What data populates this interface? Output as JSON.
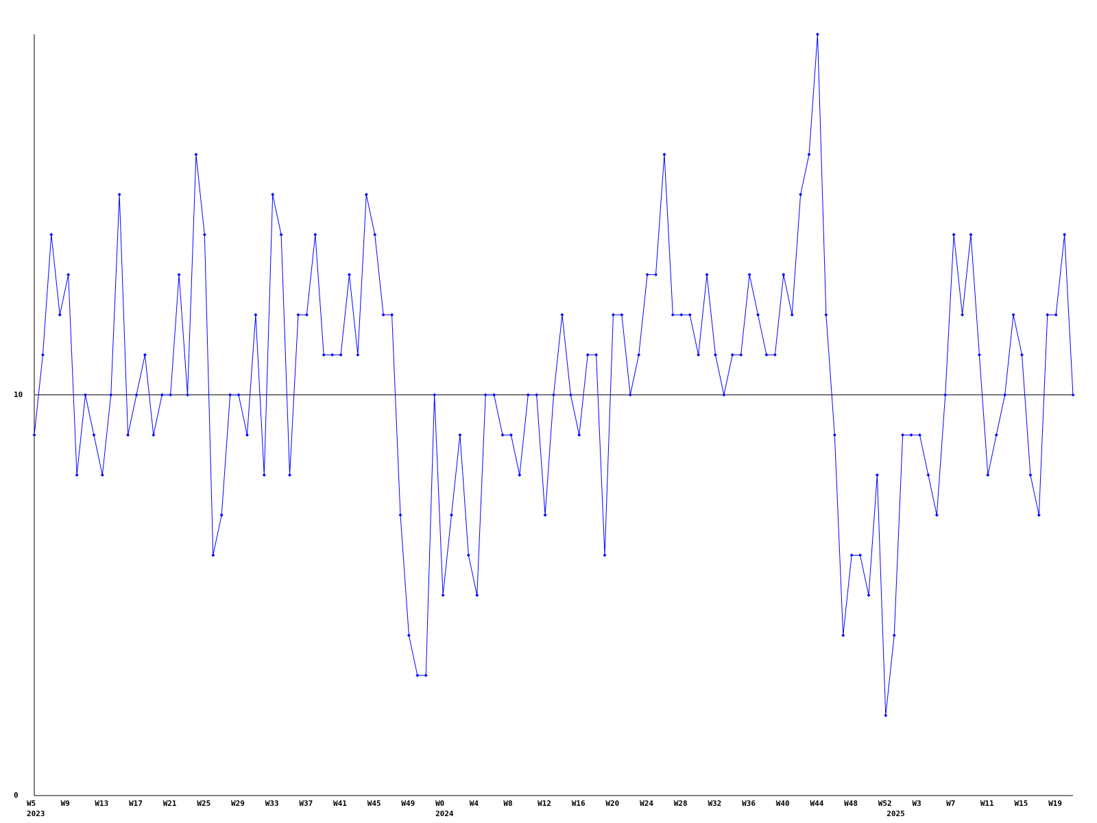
{
  "chart_data": {
    "type": "line",
    "categories": [
      "W5",
      null,
      null,
      null,
      "W9",
      null,
      null,
      null,
      "W13",
      null,
      null,
      null,
      "W17",
      null,
      null,
      null,
      "W21",
      null,
      null,
      null,
      "W25",
      null,
      null,
      null,
      "W29",
      null,
      null,
      null,
      "W33",
      null,
      null,
      null,
      "W37",
      null,
      null,
      null,
      "W41",
      null,
      null,
      null,
      "W45",
      null,
      null,
      null,
      "W49",
      null,
      null,
      null,
      "W0",
      null,
      null,
      null,
      "W4",
      null,
      null,
      null,
      "W8",
      null,
      null,
      null,
      "W12",
      null,
      null,
      null,
      "W16",
      null,
      null,
      null,
      "W20",
      null,
      null,
      null,
      "W24",
      null,
      null,
      null,
      "W28",
      null,
      null,
      null,
      "W32",
      null,
      null,
      null,
      "W36",
      null,
      null,
      null,
      "W40",
      null,
      null,
      null,
      "W44",
      null,
      null,
      null,
      "W48",
      null,
      null,
      null,
      "W52",
      null,
      null,
      null,
      "W3",
      null,
      null,
      null,
      "W7",
      null,
      null,
      null,
      "W11",
      null,
      null,
      null,
      "W15",
      null,
      null,
      null,
      "W19",
      null,
      null
    ],
    "category_years": [
      "2023",
      null,
      null,
      null,
      null,
      null,
      null,
      null,
      null,
      null,
      null,
      null,
      null,
      null,
      null,
      null,
      null,
      null,
      null,
      null,
      null,
      null,
      null,
      null,
      null,
      null,
      null,
      null,
      null,
      null,
      null,
      null,
      null,
      null,
      null,
      null,
      null,
      null,
      null,
      null,
      null,
      null,
      null,
      null,
      null,
      null,
      null,
      null,
      "2024",
      null,
      null,
      null,
      null,
      null,
      null,
      null,
      null,
      null,
      null,
      null,
      null,
      null,
      null,
      null,
      null,
      null,
      null,
      null,
      null,
      null,
      null,
      null,
      null,
      null,
      null,
      null,
      null,
      null,
      null,
      null,
      null,
      null,
      null,
      null,
      null,
      null,
      null,
      null,
      null,
      null,
      null,
      null,
      null,
      null,
      null,
      null,
      null,
      null,
      null,
      null,
      null,
      "2025",
      null,
      null,
      null,
      null,
      null,
      null,
      null,
      null,
      null,
      null,
      null,
      null,
      null,
      null,
      null,
      null,
      null,
      null,
      null,
      null,
      null
    ],
    "values": [
      9,
      11,
      14,
      12,
      13,
      8,
      10,
      9,
      8,
      10,
      15,
      9,
      10,
      11,
      9,
      10,
      10,
      13,
      10,
      16,
      14,
      6,
      7,
      10,
      10,
      9,
      12,
      8,
      15,
      14,
      8,
      12,
      12,
      14,
      11,
      11,
      11,
      13,
      11,
      15,
      14,
      12,
      12,
      7,
      4,
      3,
      3,
      10,
      5,
      7,
      9,
      6,
      5,
      10,
      10,
      9,
      9,
      8,
      10,
      10,
      7,
      10,
      12,
      10,
      9,
      11,
      11,
      6,
      12,
      12,
      10,
      11,
      13,
      13,
      16,
      12,
      12,
      12,
      11,
      13,
      11,
      10,
      11,
      11,
      13,
      12,
      11,
      11,
      13,
      12,
      15,
      16,
      19,
      12,
      9,
      4,
      6,
      6,
      5,
      8,
      2,
      4,
      9,
      9,
      9,
      8,
      7,
      10,
      14,
      12,
      14,
      11,
      8,
      9,
      10,
      12,
      11,
      8,
      7,
      12,
      12,
      14,
      10
    ],
    "color": "#0000ff",
    "ylim": [
      0,
      19
    ],
    "yticks": [
      0,
      10
    ],
    "grid": true
  }
}
